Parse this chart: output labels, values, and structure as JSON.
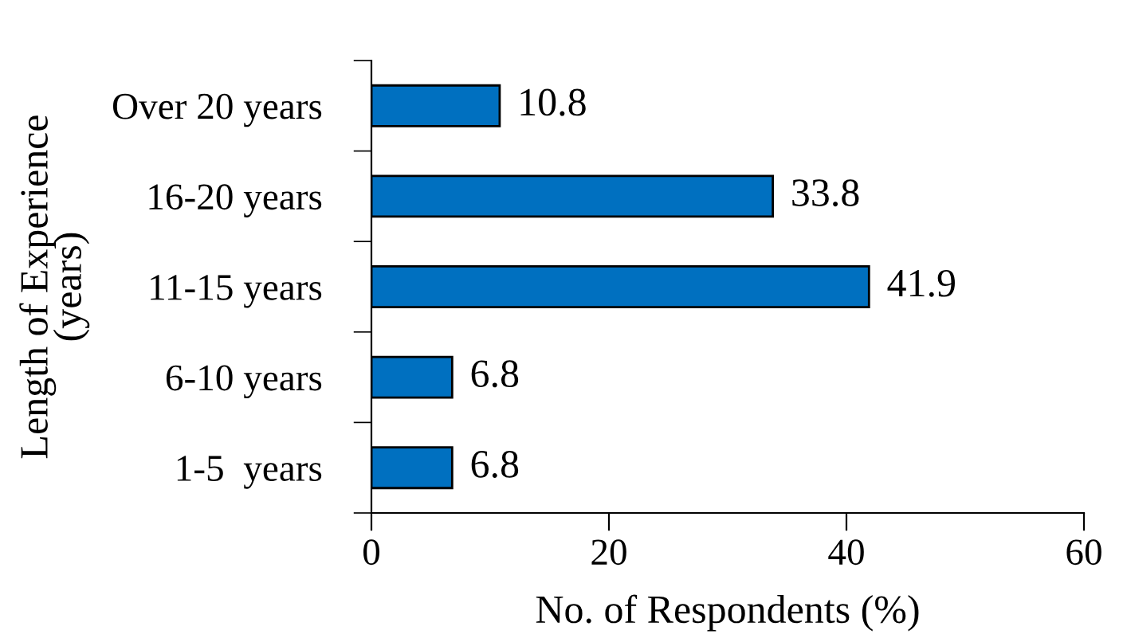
{
  "chart_data": {
    "type": "bar",
    "orientation": "horizontal",
    "categories": [
      "Over 20 years",
      "16-20 years",
      "11-15 years",
      "6-10 years",
      "1-5  years"
    ],
    "values": [
      10.8,
      33.8,
      41.9,
      6.8,
      6.8
    ],
    "color": "#0070c0",
    "xlim": [
      0,
      60
    ],
    "xticks": [
      0,
      20,
      40,
      60
    ],
    "xlabel": "No. of Respondents (%)",
    "ylabel": "Length of Experience\n(years)",
    "data_labels": true,
    "grid": false,
    "legend": false
  }
}
